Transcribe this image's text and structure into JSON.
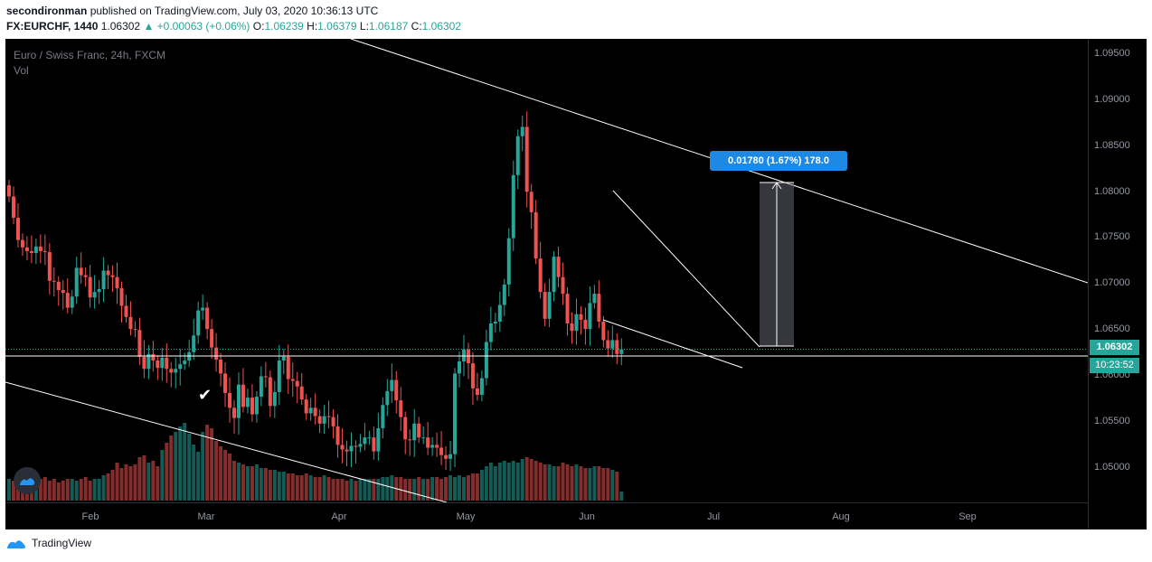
{
  "header": {
    "author": "secondironman",
    "published": "published on TradingView.com, July 03, 2020 10:36:13 UTC",
    "symbol": "FX:EURCHF, 1440",
    "last": "1.06302",
    "change": "▲ +0.00063 (+0.06%)",
    "o_label": "O:",
    "o_value": "1.06239",
    "h_label": "H:",
    "h_value": "1.06379",
    "l_label": "L:",
    "l_value": "1.06187",
    "c_label": "C:",
    "c_value": "1.06302"
  },
  "legend": {
    "title": "Euro / Swiss Franc, 24h, FXCM",
    "volume_label": "Vol"
  },
  "price_axis": {
    "ticks": [
      "1.09500",
      "1.09000",
      "1.08500",
      "1.08000",
      "1.07500",
      "1.07000",
      "1.06500",
      "1.06000",
      "1.05500",
      "1.05000"
    ],
    "current_price": "1.06302",
    "countdown": "10:23:52"
  },
  "time_axis": {
    "ticks": [
      "Feb",
      "Mar",
      "Apr",
      "May",
      "Jun",
      "Jul",
      "Aug",
      "Sep"
    ]
  },
  "measure": {
    "label": "0.01780 (1.67%) 178.0"
  },
  "footer": {
    "brand": "TradingView"
  },
  "colors": {
    "up": "#26a69a",
    "down": "#ef5350",
    "background": "#000000",
    "measure": "#1e88e5"
  },
  "chart_data": {
    "type": "candlestick",
    "title": "Euro / Swiss Franc, 24h, FXCM",
    "ylim": [
      1.0465,
      1.0965
    ],
    "x_ticks": [
      "Feb",
      "Mar",
      "Apr",
      "May",
      "Jun",
      "Jul",
      "Aug",
      "Sep"
    ],
    "close": [
      1.0795,
      1.0772,
      1.0748,
      1.074,
      1.0736,
      1.0734,
      1.0741,
      1.0736,
      1.0735,
      1.0704,
      1.0703,
      1.0694,
      1.0691,
      1.0675,
      1.0687,
      1.0718,
      1.071,
      1.0708,
      1.0686,
      1.0692,
      1.0695,
      1.0715,
      1.071,
      1.0708,
      1.0696,
      1.0677,
      1.0665,
      1.0652,
      1.0651,
      1.0622,
      1.0609,
      1.0625,
      1.0618,
      1.061,
      1.0621,
      1.0609,
      1.0605,
      1.0609,
      1.0614,
      1.0618,
      1.0627,
      1.0645,
      1.0672,
      1.0675,
      1.0652,
      1.0632,
      1.0619,
      1.0604,
      1.0583,
      1.0567,
      1.0556,
      1.0592,
      1.0568,
      1.0578,
      1.056,
      1.0579,
      1.0601,
      1.06,
      1.0569,
      1.0584,
      1.0618,
      1.0622,
      1.0598,
      1.0596,
      1.059,
      1.0576,
      1.0561,
      1.0567,
      1.0558,
      1.055,
      1.0558,
      1.0557,
      1.0547,
      1.0527,
      1.0522,
      1.052,
      1.0526,
      1.0525,
      1.0528,
      1.0535,
      1.0535,
      1.052,
      1.0545,
      1.057,
      1.0585,
      1.0597,
      1.0575,
      1.0557,
      1.0533,
      1.0532,
      1.055,
      1.0535,
      1.0535,
      1.0524,
      1.0527,
      1.0524,
      1.0516,
      1.0512,
      1.0517,
      1.0604,
      1.0617,
      1.063,
      1.0615,
      1.0588,
      1.0581,
      1.0599,
      1.0638,
      1.0658,
      1.066,
      1.0678,
      1.07,
      1.075,
      1.0818,
      1.086,
      1.087,
      1.08,
      1.0778,
      1.0728,
      1.0692,
      1.0663,
      1.0692,
      1.073,
      1.0708,
      1.069,
      1.0658,
      1.065,
      1.0668,
      1.0662,
      1.0652,
      1.068,
      1.069,
      1.066,
      1.064,
      1.0631,
      1.064,
      1.0625,
      1.063
    ],
    "volume": [
      12,
      11,
      11,
      10,
      13,
      12,
      11,
      12,
      13,
      11,
      12,
      10,
      11,
      12,
      12,
      11,
      12,
      13,
      11,
      12,
      12,
      14,
      15,
      17,
      21,
      18,
      20,
      19,
      20,
      24,
      25,
      21,
      22,
      19,
      28,
      32,
      36,
      38,
      41,
      43,
      37,
      31,
      27,
      38,
      42,
      40,
      33,
      30,
      28,
      26,
      22,
      21,
      20,
      19,
      19,
      20,
      18,
      18,
      17,
      17,
      16,
      16,
      15,
      15,
      14,
      14,
      15,
      14,
      13,
      13,
      14,
      13,
      12,
      12,
      12,
      11,
      12,
      11,
      12,
      12,
      12,
      12,
      12,
      13,
      13,
      14,
      13,
      13,
      12,
      12,
      12,
      13,
      12,
      12,
      13,
      13,
      12,
      13,
      14,
      13,
      14,
      13,
      14,
      15,
      15,
      17,
      19,
      21,
      19,
      21,
      22,
      21,
      22,
      21,
      23,
      24,
      23,
      22,
      21,
      20,
      20,
      19,
      19,
      21,
      20,
      19,
      20,
      19,
      18,
      18,
      19,
      19,
      18,
      18,
      17,
      16,
      5
    ]
  }
}
